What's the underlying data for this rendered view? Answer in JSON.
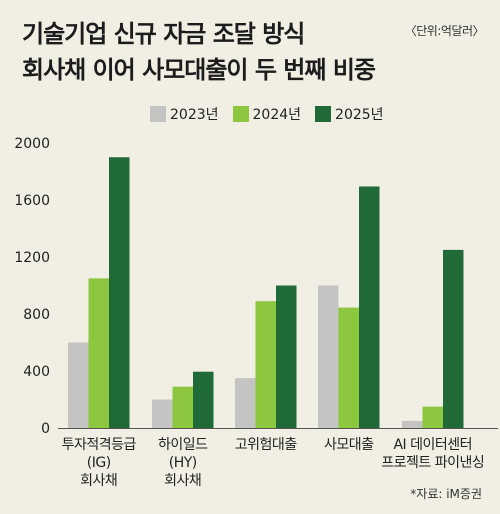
{
  "title_line1": "기술기업 신규 자금 조달 방식",
  "title_line2": "회사채 이어 사모대출이 두 번째 비중",
  "unit": "〈단위:억달러〉",
  "source": "*자료: iM증권",
  "colors": {
    "2023년": "#c4c4c2",
    "2024년": "#8dc63f",
    "2025년": "#1f6a37"
  },
  "chart_data": {
    "type": "bar",
    "title": "기술기업 신규 자금 조달 방식 회사채 이어 사모대출이 두 번째 비중",
    "categories": [
      [
        "투자적격등급",
        "(IG)",
        "회사채"
      ],
      [
        "하이일드",
        "(HY)",
        "회사채"
      ],
      [
        "고위험대출"
      ],
      [
        "사모대출"
      ],
      [
        "AI 데이터센터",
        "프로젝트 파이낸싱"
      ]
    ],
    "series": [
      {
        "name": "2023년",
        "values": [
          600,
          200,
          350,
          1000,
          50
        ]
      },
      {
        "name": "2024년",
        "values": [
          1050,
          290,
          890,
          845,
          150
        ]
      },
      {
        "name": "2025년",
        "values": [
          1900,
          395,
          1000,
          1695,
          1250
        ]
      }
    ],
    "yticks": [
      0,
      400,
      800,
      1200,
      1600,
      2000
    ],
    "ylim": [
      0,
      2000
    ],
    "xlabel": "",
    "ylabel": "",
    "grid": false,
    "legend": "top"
  }
}
